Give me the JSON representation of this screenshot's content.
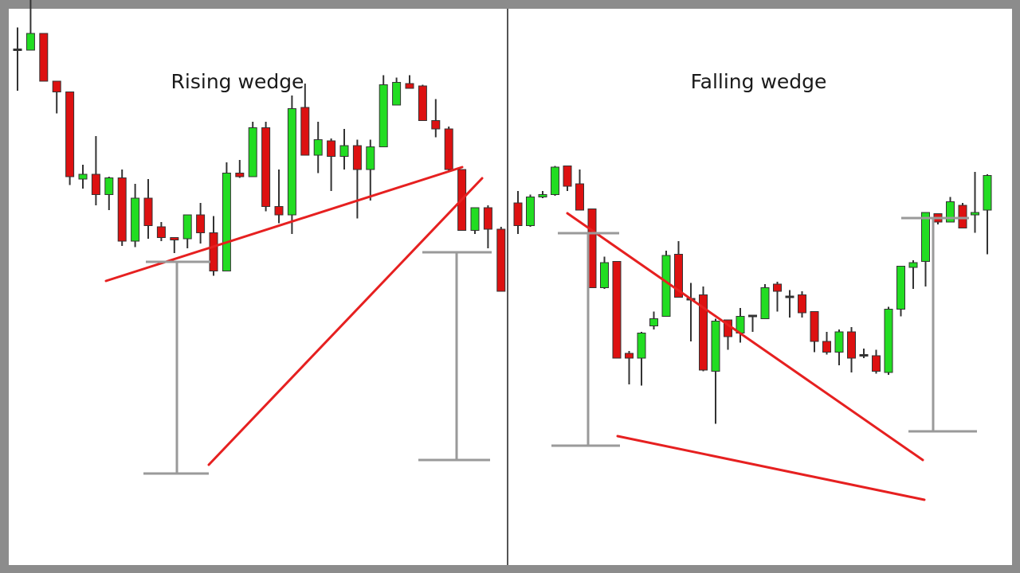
{
  "colors": {
    "frame": "#8c8c8c",
    "background": "#ffffff",
    "divider": "#555555",
    "bull": "#22dd22",
    "bear": "#dd1111",
    "wick": "#333333",
    "trendline": "#e62020",
    "measure": "#9a9a9a"
  },
  "chart_data": [
    {
      "type": "candlestick",
      "title": "Rising wedge",
      "xlabel": "",
      "ylabel": "",
      "grid": false,
      "legend": "none",
      "candles": [
        {
          "o": 7.95,
          "h": 8.85,
          "l": 6.2,
          "c": 7.95
        },
        {
          "o": 7.9,
          "h": 10.0,
          "l": 7.9,
          "c": 8.6
        },
        {
          "o": 8.6,
          "h": 8.6,
          "l": 6.7,
          "c": 6.6
        },
        {
          "o": 6.6,
          "h": 6.6,
          "l": 5.25,
          "c": 6.15
        },
        {
          "o": 6.15,
          "h": 6.15,
          "l": 2.25,
          "c": 2.6
        },
        {
          "o": 2.5,
          "h": 3.1,
          "l": 2.1,
          "c": 2.7
        },
        {
          "o": 2.7,
          "h": 4.3,
          "l": 1.4,
          "c": 1.85
        },
        {
          "o": 1.85,
          "h": 2.6,
          "l": 1.2,
          "c": 2.55
        },
        {
          "o": 2.55,
          "h": 2.9,
          "l": -0.3,
          "c": -0.1
        },
        {
          "o": -0.1,
          "h": 2.3,
          "l": -0.35,
          "c": 1.7
        },
        {
          "o": 1.7,
          "h": 2.5,
          "l": 0.0,
          "c": 0.55
        },
        {
          "o": 0.5,
          "h": 0.7,
          "l": -0.1,
          "c": 0.05
        },
        {
          "o": 0.05,
          "h": 0.05,
          "l": -0.6,
          "c": -0.05
        },
        {
          "o": 0.0,
          "h": 0.9,
          "l": -0.4,
          "c": 1.0
        },
        {
          "o": 1.0,
          "h": 1.5,
          "l": -0.2,
          "c": 0.25
        },
        {
          "o": 0.25,
          "h": 0.95,
          "l": -1.55,
          "c": -1.35
        },
        {
          "o": -1.35,
          "h": 3.2,
          "l": -1.35,
          "c": 2.75
        },
        {
          "o": 2.75,
          "h": 3.3,
          "l": 2.55,
          "c": 2.6
        },
        {
          "o": 2.6,
          "h": 4.9,
          "l": 2.6,
          "c": 4.65
        },
        {
          "o": 4.65,
          "h": 4.9,
          "l": 1.15,
          "c": 1.35
        },
        {
          "o": 1.35,
          "h": 2.9,
          "l": 0.65,
          "c": 1.0
        },
        {
          "o": 1.0,
          "h": 6.0,
          "l": 0.2,
          "c": 5.45
        },
        {
          "o": 5.5,
          "h": 6.5,
          "l": 3.5,
          "c": 3.5
        },
        {
          "o": 3.5,
          "h": 4.9,
          "l": 2.75,
          "c": 4.15
        },
        {
          "o": 4.1,
          "h": 4.2,
          "l": 2.0,
          "c": 3.45
        },
        {
          "o": 3.45,
          "h": 4.6,
          "l": 2.9,
          "c": 3.9
        },
        {
          "o": 3.9,
          "h": 4.15,
          "l": 0.85,
          "c": 2.9
        },
        {
          "o": 2.9,
          "h": 4.15,
          "l": 1.6,
          "c": 3.85
        },
        {
          "o": 3.85,
          "h": 6.85,
          "l": 3.85,
          "c": 6.45
        },
        {
          "o": 5.6,
          "h": 6.75,
          "l": 5.6,
          "c": 6.55
        },
        {
          "o": 6.5,
          "h": 6.85,
          "l": 6.3,
          "c": 6.3
        },
        {
          "o": 6.4,
          "h": 6.45,
          "l": 4.95,
          "c": 4.95
        },
        {
          "o": 4.95,
          "h": 5.85,
          "l": 4.25,
          "c": 4.6
        },
        {
          "o": 4.6,
          "h": 4.7,
          "l": 2.85,
          "c": 2.9
        },
        {
          "o": 2.9,
          "h": 2.9,
          "l": 0.35,
          "c": 0.35
        },
        {
          "o": 0.35,
          "h": 1.3,
          "l": 0.2,
          "c": 1.3
        },
        {
          "o": 1.3,
          "h": 1.4,
          "l": -0.4,
          "c": 0.4
        },
        {
          "o": 0.4,
          "h": 0.5,
          "l": -2.2,
          "c": -2.2
        },
        {
          "o": -2.2,
          "h": -2.0,
          "l": -3.8,
          "c": -3.0
        }
      ]
    },
    {
      "type": "candlestick",
      "title": "Falling wedge",
      "xlabel": "",
      "ylabel": "",
      "grid": false,
      "legend": "none",
      "candles": [
        {
          "o": 5.5,
          "h": 6.0,
          "l": 4.2,
          "c": 4.55
        },
        {
          "o": 4.55,
          "h": 5.85,
          "l": 4.5,
          "c": 5.75
        },
        {
          "o": 5.75,
          "h": 6.0,
          "l": 5.7,
          "c": 5.85
        },
        {
          "o": 5.85,
          "h": 7.05,
          "l": 5.8,
          "c": 7.0
        },
        {
          "o": 7.05,
          "h": 7.05,
          "l": 6.0,
          "c": 6.2
        },
        {
          "o": 6.3,
          "h": 6.9,
          "l": 5.2,
          "c": 5.2
        },
        {
          "o": 5.25,
          "h": 5.25,
          "l": 1.95,
          "c": 1.95
        },
        {
          "o": 1.95,
          "h": 3.25,
          "l": 1.9,
          "c": 3.0
        },
        {
          "o": 3.05,
          "h": 3.05,
          "l": -1.0,
          "c": -1.0
        },
        {
          "o": -0.8,
          "h": -0.7,
          "l": -2.1,
          "c": -1.0
        },
        {
          "o": -1.0,
          "h": 0.1,
          "l": -2.15,
          "c": 0.05
        },
        {
          "o": 0.35,
          "h": 0.95,
          "l": 0.2,
          "c": 0.65
        },
        {
          "o": 0.75,
          "h": 3.5,
          "l": 0.75,
          "c": 3.3
        },
        {
          "o": 3.35,
          "h": 3.9,
          "l": 1.6,
          "c": 1.55
        },
        {
          "o": 1.5,
          "h": 2.15,
          "l": -0.3,
          "c": 1.5
        },
        {
          "o": 1.65,
          "h": 2.0,
          "l": -1.55,
          "c": -1.5
        },
        {
          "o": -1.55,
          "h": 0.65,
          "l": -3.75,
          "c": 0.55
        },
        {
          "o": 0.6,
          "h": 0.6,
          "l": -0.65,
          "c": -0.1
        },
        {
          "o": 0.05,
          "h": 1.1,
          "l": -0.35,
          "c": 0.75
        },
        {
          "o": 0.8,
          "h": 0.8,
          "l": 0.1,
          "c": 0.8
        },
        {
          "o": 0.65,
          "h": 2.1,
          "l": 0.65,
          "c": 1.95
        },
        {
          "o": 2.1,
          "h": 2.2,
          "l": 0.95,
          "c": 1.8
        },
        {
          "o": 1.6,
          "h": 1.85,
          "l": 0.7,
          "c": 1.6
        },
        {
          "o": 1.65,
          "h": 1.8,
          "l": 0.7,
          "c": 0.9
        },
        {
          "o": 0.95,
          "h": 0.95,
          "l": -0.75,
          "c": -0.3
        },
        {
          "o": -0.3,
          "h": 0.1,
          "l": -0.85,
          "c": -0.75
        },
        {
          "o": -0.75,
          "h": 0.2,
          "l": -1.3,
          "c": 0.1
        },
        {
          "o": 0.1,
          "h": 0.3,
          "l": -1.6,
          "c": -1.0
        },
        {
          "o": -0.85,
          "h": -0.6,
          "l": -1.0,
          "c": -0.85
        },
        {
          "o": -0.9,
          "h": -0.65,
          "l": -1.65,
          "c": -1.55
        },
        {
          "o": -1.6,
          "h": 1.15,
          "l": -1.7,
          "c": 1.05
        },
        {
          "o": 1.05,
          "h": 2.85,
          "l": 0.75,
          "c": 2.85
        },
        {
          "o": 2.8,
          "h": 3.1,
          "l": 1.9,
          "c": 3.0
        },
        {
          "o": 3.05,
          "h": 5.1,
          "l": 2.0,
          "c": 5.1
        },
        {
          "o": 5.05,
          "h": 5.05,
          "l": 4.6,
          "c": 4.7
        },
        {
          "o": 4.7,
          "h": 5.75,
          "l": 4.7,
          "c": 5.55
        },
        {
          "o": 5.4,
          "h": 5.5,
          "l": 4.45,
          "c": 4.45
        },
        {
          "o": 5.0,
          "h": 6.8,
          "l": 4.25,
          "c": 5.1
        },
        {
          "o": 5.2,
          "h": 6.7,
          "l": 3.35,
          "c": 6.65
        }
      ]
    }
  ]
}
